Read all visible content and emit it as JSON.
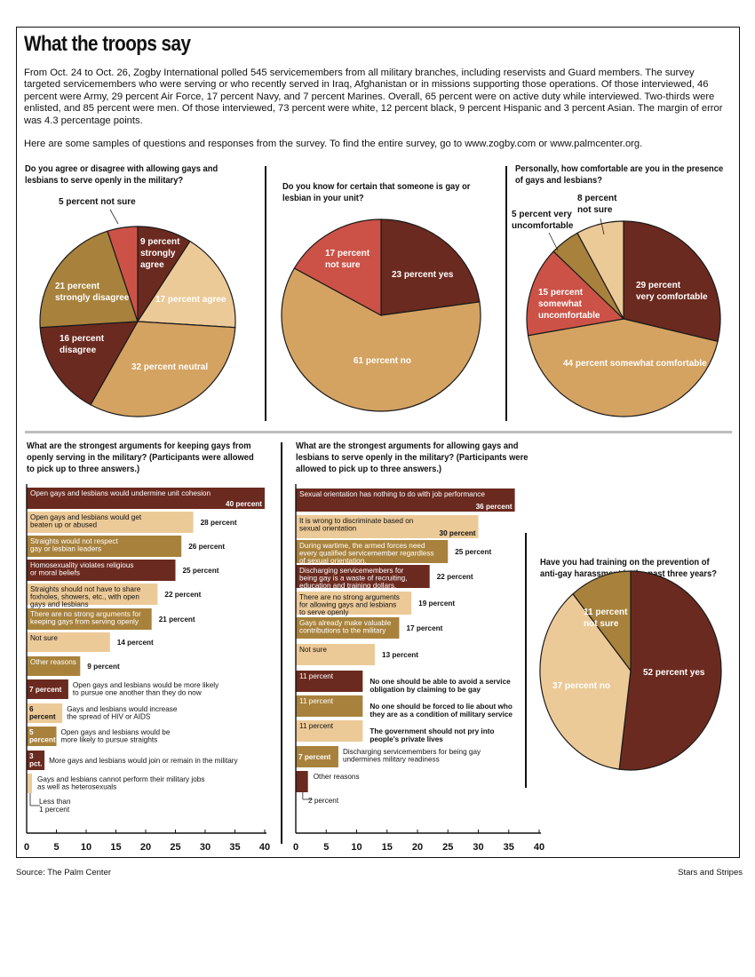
{
  "headline": "What the troops say",
  "intro": "From Oct. 24 to Oct. 26, Zogby International polled 545 servicemembers from all military branches, including reservists and Guard members. The survey targeted servicemembers who were serving or who recently served in Iraq, Afghanistan or in missions supporting those operations. Of those interviewed, 46 percent were Army, 29 percent Air Force, 17 percent Navy, and 7 percent Marines. Overall, 65 percent were on active duty while interviewed. Two-thirds were enlisted, and 85 percent were men. Of those interviewed, 73 percent were white, 12 percent black, 9 percent Hispanic and 3 percent Asian. The margin of error was 4.3 percentage points.",
  "intro2": "Here are some samples of questions and responses from the survey. To find the entire survey, go to www.zogby.com or www.palmcenter.org.",
  "source": "Source: The Palm Center",
  "credit": "Stars and Stripes",
  "colors": {
    "maroon": "#6b2a1f",
    "tan": "#d4a362",
    "light": "#ecca98",
    "olive": "#a8823c",
    "red": "#cc5247",
    "cream": "#f1dba6"
  },
  "chart_data": [
    {
      "type": "pie",
      "title": "Do you agree or disagree with allowing gays and lesbians to serve openly in the military?",
      "slices": [
        {
          "name": "strongly agree",
          "value": 9,
          "color": "maroon",
          "label": [
            "9 percent",
            "strongly",
            "agree"
          ]
        },
        {
          "name": "agree",
          "value": 17,
          "color": "light",
          "label": [
            "17 percent agree"
          ]
        },
        {
          "name": "neutral",
          "value": 32,
          "color": "tan",
          "label": [
            "32 percent neutral"
          ]
        },
        {
          "name": "disagree",
          "value": 16,
          "color": "maroon",
          "label": [
            "16 percent",
            "disagree"
          ]
        },
        {
          "name": "strongly disagree",
          "value": 21,
          "color": "olive",
          "label": [
            "21 percent",
            "strongly disagree"
          ]
        },
        {
          "name": "not sure",
          "value": 5,
          "color": "red",
          "label": [
            "5 percent not sure"
          ]
        }
      ]
    },
    {
      "type": "pie",
      "title": "Do you know for certain that someone is gay or lesbian in your unit?",
      "slices": [
        {
          "name": "yes",
          "value": 23,
          "color": "maroon",
          "label": [
            "23 percent yes"
          ]
        },
        {
          "name": "no",
          "value": 61,
          "color": "tan",
          "label": [
            "61 percent no"
          ]
        },
        {
          "name": "not sure",
          "value": 17,
          "color": "red",
          "label": [
            "17 percent",
            "not sure"
          ]
        }
      ]
    },
    {
      "type": "pie",
      "title": "Personally, how comfortable are you in the presence of gays and lesbians?",
      "slices": [
        {
          "name": "very comfortable",
          "value": 29,
          "color": "maroon",
          "label": [
            "29 percent",
            "very comfortable"
          ]
        },
        {
          "name": "somewhat comfortable",
          "value": 44,
          "color": "tan",
          "label": [
            "44 percent somewhat comfortable"
          ]
        },
        {
          "name": "somewhat uncomfortable",
          "value": 15,
          "color": "red",
          "label": [
            "15 percent",
            "somewhat",
            "uncomfortable"
          ]
        },
        {
          "name": "very uncomfortable",
          "value": 5,
          "color": "olive",
          "label": [
            "5 percent very",
            "uncomfortable"
          ]
        },
        {
          "name": "not sure",
          "value": 8,
          "color": "light",
          "label": [
            "8 percent",
            "not sure"
          ]
        }
      ]
    },
    {
      "type": "bar",
      "orientation": "horizontal",
      "title": "What are the strongest arguments for keeping gays from openly serving in the military? (Participants were allowed to pick up to three answers.)",
      "xlim": [
        0,
        40
      ],
      "xticks": [
        "0",
        "5",
        "10",
        "15",
        "20",
        "25",
        "30",
        "35",
        "40"
      ],
      "bars": [
        {
          "value": 40,
          "color": "maroon",
          "label": [
            "Open gays and lesbians would undermine unit cohesion"
          ],
          "value_label": "40 percent"
        },
        {
          "value": 28,
          "color": "light",
          "label": [
            "Open gays and lesbians would get",
            "beaten up or abused"
          ],
          "value_label": "28 percent"
        },
        {
          "value": 26,
          "color": "olive",
          "label": [
            "Straights would not respect",
            "gay or lesbian leaders"
          ],
          "value_label": "26 percent"
        },
        {
          "value": 25,
          "color": "maroon",
          "label": [
            "Homosexuality violates religious",
            "or moral beliefs"
          ],
          "value_label": "25 percent"
        },
        {
          "value": 22,
          "color": "light",
          "label": [
            "Straights should not have to share",
            "foxholes, showers, etc., with open",
            "gays and lesbians"
          ],
          "value_label": "22 percent"
        },
        {
          "value": 21,
          "color": "olive",
          "label": [
            "There are no strong arguments for",
            "keeping gays from serving openly"
          ],
          "value_label": "21 percent"
        },
        {
          "value": 14,
          "color": "light",
          "label": [
            "Not sure"
          ],
          "value_label": "14 percent"
        },
        {
          "value": 9,
          "color": "olive",
          "label": [
            "Other reasons"
          ],
          "value_label": "9 percent"
        },
        {
          "value": 7,
          "color": "maroon",
          "label": [
            "7 percent"
          ],
          "value_label": "Open gays and lesbians would be more likely | to pursue one another than they do now"
        },
        {
          "value": 6,
          "color": "light",
          "label": [
            "6",
            "percent"
          ],
          "value_label": "Gays and lesbians would increase | the spread of HIV or AIDS"
        },
        {
          "value": 5,
          "color": "olive",
          "label": [
            "5",
            "percent"
          ],
          "value_label": "Open gays and lesbians would be | more likely to pursue straights"
        },
        {
          "value": 3,
          "color": "maroon",
          "label": [
            "3",
            "pct."
          ],
          "value_label": "More gays and lesbians would join or remain in the military"
        },
        {
          "value": 0.9,
          "color": "light",
          "label": [],
          "value_label": "Gays and lesbians cannot perform their military jobs | as well as heterosexuals",
          "note": "Less than | 1 percent"
        }
      ]
    },
    {
      "type": "bar",
      "orientation": "horizontal",
      "title": "What are the strongest arguments for allowing gays and lesbians to serve openly in the military? (Participants were allowed to pick up to three answers.)",
      "xlim": [
        0,
        40
      ],
      "xticks": [
        "0",
        "5",
        "10",
        "15",
        "20",
        "25",
        "30",
        "35",
        "40"
      ],
      "bars": [
        {
          "value": 36,
          "color": "maroon",
          "label": [
            "Sexual orientation has nothing to do with job performance"
          ],
          "value_label": "36 percent"
        },
        {
          "value": 30,
          "color": "light",
          "label": [
            "It is wrong to discriminate based on",
            "sexual orientation"
          ],
          "value_label": "30 percent"
        },
        {
          "value": 25,
          "color": "olive",
          "label": [
            "During wartime, the armed forces need",
            "every qualified servicemember regardless",
            "of sexual orientation."
          ],
          "value_label": "25 percent"
        },
        {
          "value": 22,
          "color": "maroon",
          "label": [
            "Discharging servicemembers for",
            "being gay is a waste of recruiting,",
            "education and training dollars."
          ],
          "value_label": "22 percent"
        },
        {
          "value": 19,
          "color": "light",
          "label": [
            "There are no strong arguments",
            "for allowing gays and lesbians",
            "to serve openly"
          ],
          "value_label": "19 percent"
        },
        {
          "value": 17,
          "color": "olive",
          "label": [
            "Gays already make valuable",
            "contributions to the military"
          ],
          "value_label": "17 percent"
        },
        {
          "value": 13,
          "color": "light",
          "label": [
            "Not sure"
          ],
          "value_label": "13 percent"
        },
        {
          "value": 11,
          "color": "maroon",
          "label": [
            "11 percent"
          ],
          "value_label": "No one should be able to avoid a service | obligation by claiming to be gay"
        },
        {
          "value": 11,
          "color": "olive",
          "label": [
            "11 percent"
          ],
          "value_label": "No one should be forced to lie about who | they are as a condition of military service"
        },
        {
          "value": 11,
          "color": "light",
          "label": [
            "11 percent"
          ],
          "value_label": "The government should not pry into | people's private lives"
        },
        {
          "value": 7,
          "color": "olive",
          "label": [
            "7 percent"
          ],
          "value_label": "Discharging servicemembers for being gay | undermines military readiness"
        },
        {
          "value": 2,
          "color": "maroon",
          "label": [],
          "value_label": "Other reasons",
          "note": "2 percent"
        }
      ]
    },
    {
      "type": "pie",
      "title": "Have you had training on the prevention of anti-gay harassment in the past three years?",
      "slices": [
        {
          "name": "yes",
          "value": 52,
          "color": "maroon",
          "label": [
            "52 percent yes"
          ]
        },
        {
          "name": "no",
          "value": 37,
          "color": "light",
          "label": [
            "37 percent no"
          ]
        },
        {
          "name": "not sure",
          "value": 11,
          "color": "olive",
          "label": [
            "11 percent",
            "not sure"
          ]
        }
      ]
    }
  ]
}
